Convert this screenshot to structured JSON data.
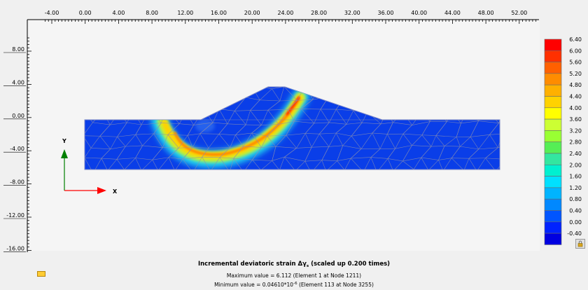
{
  "axes": {
    "x_ticks": [
      "-4.00",
      "0.00",
      "4.00",
      "8.00",
      "12.00",
      "16.00",
      "20.00",
      "24.00",
      "28.00",
      "32.00",
      "36.00",
      "40.00",
      "44.00",
      "48.00",
      "52.00"
    ],
    "y_ticks": [
      "8.00",
      "4.00",
      "0.00",
      "-4.00",
      "-8.00",
      "-12.00",
      "-16.00"
    ],
    "x_axis_label": "X",
    "y_axis_label": "Y"
  },
  "legend": {
    "labels": [
      "6.40",
      "6.00",
      "5.60",
      "5.20",
      "4.80",
      "4.40",
      "4.00",
      "3.60",
      "3.20",
      "2.80",
      "2.40",
      "2.00",
      "1.60",
      "1.20",
      "0.80",
      "0.40",
      "0.00",
      "-0.40"
    ],
    "colors": [
      "#ff0000",
      "#ff3000",
      "#ff6000",
      "#ff8c00",
      "#ffb000",
      "#ffd200",
      "#ffff00",
      "#ccff33",
      "#99ff33",
      "#55ee55",
      "#33e6a0",
      "#00f0d0",
      "#00e0ff",
      "#00b4ff",
      "#0088ff",
      "#0055ff",
      "#0022ff",
      "#0000e0"
    ]
  },
  "caption": {
    "title_prefix": "Incremental deviatoric strain ",
    "title_symbol": "Δγ",
    "title_sub": "s",
    "title_suffix": " (scaled up 0.200 times)",
    "max_line": "Maximum value = 6.112  (Element 1 at Node 1211)",
    "min_prefix": "Minimum value = 0.04610*10",
    "min_exp": "-6",
    "min_suffix": "  (Element 113 at Node 3255)"
  },
  "colors": {
    "background": "#f0f0f0",
    "model_fill": "#0a3ee8",
    "mesh_line": "#8a8fb0",
    "axis_y_arrow": "#008000",
    "axis_x_arrow": "#ff0000"
  },
  "icons": {
    "lock": "lock-icon",
    "info": "info-icon"
  }
}
